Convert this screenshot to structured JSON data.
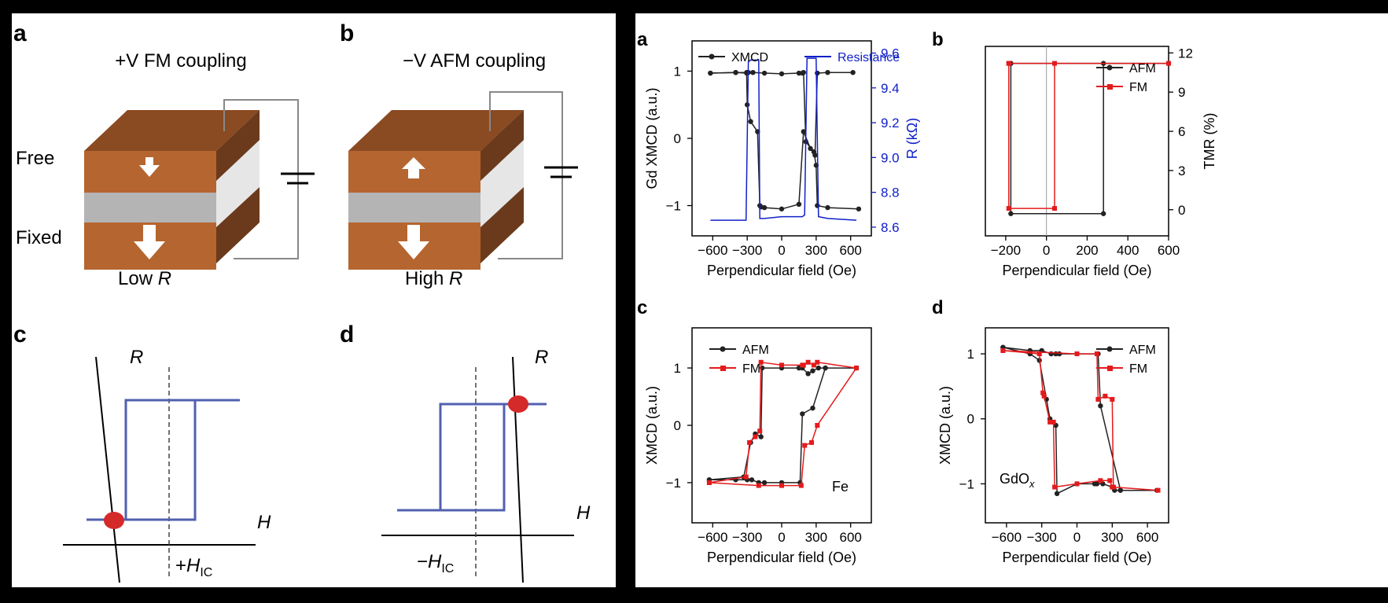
{
  "left": {
    "panels": [
      {
        "letter": "a",
        "title": "+V FM coupling",
        "layer_top": "Free",
        "layer_bottom": "Fixed",
        "caption_prefix": "Low ",
        "caption_var": "R"
      },
      {
        "letter": "b",
        "title": "−V AFM coupling",
        "caption_prefix": "High ",
        "caption_var": "R"
      },
      {
        "letter": "c",
        "ylabel": "R",
        "xlabel": "H",
        "field_sign": "+",
        "field_base": "H",
        "field_sub": "IC"
      },
      {
        "letter": "d",
        "ylabel": "R",
        "xlabel": "H",
        "field_sign": "−",
        "field_base": "H",
        "field_sub": "IC"
      }
    ],
    "colors": {
      "block": "#b5652f",
      "block_top": "#8a4a22",
      "block_side": "#6b3a1c",
      "spacer": "#b4b4b4",
      "loop": "#5060b0",
      "dot": "#d42a2a"
    }
  },
  "chart_data": [
    {
      "id": "a",
      "type": "line",
      "letter": "a",
      "xlabel": "Perpendicular field (Oe)",
      "ylabel": "Gd XMCD (a.u.)",
      "y2label": "R (kΩ)",
      "xlim": [
        -780,
        780
      ],
      "ylim": [
        -1.45,
        1.45
      ],
      "y2lim": [
        8.55,
        9.67
      ],
      "xticks": [
        -600,
        -300,
        0,
        300,
        600
      ],
      "yticks": [
        -1,
        0,
        1
      ],
      "y2ticks": [
        8.6,
        8.8,
        9.0,
        9.2,
        9.4,
        9.6
      ],
      "legend": "top",
      "series": [
        {
          "name": "XMCD",
          "color": "#222222",
          "marker": "circle",
          "branches": [
            {
              "x": [
                -620,
                -400,
                -305,
                -300,
                -270,
                -210,
                -190,
                -180,
                -150,
                0,
                150,
                190,
                250,
                290,
                310,
                400,
                620
              ],
              "y": [
                0.97,
                0.98,
                0.98,
                0.5,
                0.25,
                0.1,
                -1.0,
                -1.02,
                -1.03,
                -1.05,
                -0.98,
                0.1,
                -0.15,
                -0.25,
                0.97,
                0.98,
                0.98
              ]
            },
            {
              "x": [
                670,
                400,
                310,
                300,
                280,
                210,
                190,
                180,
                150,
                0,
                -150,
                -250,
                -290,
                -300,
                -305,
                -400,
                -620
              ],
              "y": [
                -1.05,
                -1.03,
                -1.0,
                -0.4,
                -0.2,
                -0.05,
                0.98,
                0.97,
                0.97,
                0.96,
                0.97,
                0.98,
                0.98,
                0.98,
                0.97,
                0.98,
                0.97
              ]
            }
          ]
        },
        {
          "name": "Resistance",
          "color": "#1020c8",
          "axis": "y2",
          "x": [
            -620,
            -310,
            -290,
            -270,
            -200,
            -190,
            -150,
            0,
            180,
            200,
            220,
            300,
            320,
            400,
            650
          ],
          "y": [
            8.64,
            8.64,
            9.55,
            9.56,
            9.56,
            8.65,
            8.65,
            8.66,
            8.66,
            8.67,
            9.57,
            9.57,
            8.66,
            8.65,
            8.64
          ]
        }
      ]
    },
    {
      "id": "b",
      "type": "line",
      "letter": "b",
      "xlabel": "Perpendicular field (Oe)",
      "y2label": "TMR (%)",
      "xlim": [
        -300,
        600
      ],
      "ylim": [
        -2,
        12.5
      ],
      "xticks": [
        -200,
        0,
        200,
        400,
        600
      ],
      "y2ticks": [
        0,
        3,
        6,
        9,
        12
      ],
      "vline": 0,
      "legend": "top-right",
      "series": [
        {
          "name": "AFM",
          "color": "#222222",
          "marker": "circle",
          "x": [
            -175,
            -175,
            280,
            280,
            600,
            -175
          ],
          "y": [
            11.2,
            -0.3,
            -0.3,
            11.2,
            11.2,
            11.2
          ]
        },
        {
          "name": "FM",
          "color": "#e41a1c",
          "marker": "square",
          "x": [
            -185,
            -185,
            40,
            40,
            600,
            -185
          ],
          "y": [
            11.2,
            0.1,
            0.1,
            11.2,
            11.2,
            11.2
          ]
        }
      ]
    },
    {
      "id": "c",
      "type": "line",
      "letter": "c",
      "xlabel": "Perpendicular field (Oe)",
      "ylabel": "XMCD (a.u.)",
      "annotation": "Fe",
      "xlim": [
        -780,
        780
      ],
      "ylim": [
        -1.7,
        1.7
      ],
      "xticks": [
        -600,
        -300,
        0,
        300,
        600
      ],
      "yticks": [
        -1,
        0,
        1
      ],
      "legend": "top-left",
      "series": [
        {
          "name": "AFM",
          "color": "#222222",
          "marker": "circle",
          "x": [
            -630,
            -330,
            -270,
            -230,
            -180,
            -170,
            0,
            150,
            180,
            230,
            270,
            320,
            380,
            650,
            380,
            270,
            180,
            160,
            0,
            -150,
            -200,
            -260,
            -300,
            -400,
            -630
          ],
          "y": [
            -0.95,
            -0.9,
            -0.3,
            -0.15,
            -0.2,
            1.0,
            1.0,
            1.0,
            1.0,
            0.9,
            0.95,
            1.0,
            1.0,
            1.0,
            1.0,
            0.3,
            0.2,
            -1.0,
            -1.0,
            -1.0,
            -1.0,
            -0.95,
            -0.95,
            -0.95,
            -0.95
          ]
        },
        {
          "name": "FM",
          "color": "#e41a1c",
          "marker": "square",
          "x": [
            -630,
            -310,
            -280,
            -230,
            -190,
            -180,
            0,
            180,
            190,
            230,
            280,
            310,
            650,
            310,
            260,
            200,
            170,
            0,
            -200,
            -630
          ],
          "y": [
            -1.0,
            -0.9,
            -0.3,
            -0.2,
            -0.1,
            1.1,
            1.05,
            1.05,
            1.05,
            1.1,
            1.05,
            1.1,
            1.0,
            0.0,
            -0.3,
            -0.35,
            -1.05,
            -1.05,
            -1.05,
            -1.0
          ]
        }
      ]
    },
    {
      "id": "d",
      "type": "line",
      "letter": "d",
      "xlabel": "Perpendicular field (Oe)",
      "ylabel": "XMCD (a.u.)",
      "annotation_base": "GdO",
      "annotation_sub": "x",
      "xlim": [
        -780,
        780
      ],
      "ylim": [
        -1.6,
        1.4
      ],
      "xticks": [
        -600,
        -300,
        0,
        300,
        600
      ],
      "yticks": [
        -1,
        0,
        1
      ],
      "legend": "top-right",
      "series": [
        {
          "name": "AFM",
          "color": "#222222",
          "marker": "circle",
          "x": [
            -630,
            -400,
            -320,
            -260,
            -230,
            -180,
            -170,
            0,
            150,
            170,
            220,
            300,
            320,
            370,
            680,
            370,
            200,
            180,
            -150,
            -180,
            -220,
            -300,
            -400,
            -630
          ],
          "y": [
            1.1,
            1.0,
            0.9,
            0.3,
            0.0,
            -0.1,
            -1.15,
            -1.0,
            -1.0,
            -1.0,
            -1.0,
            -1.05,
            -1.1,
            -1.1,
            -1.1,
            -1.1,
            0.2,
            1.0,
            1.0,
            1.0,
            1.0,
            1.05,
            1.05,
            1.1
          ]
        },
        {
          "name": "FM",
          "color": "#e41a1c",
          "marker": "square",
          "x": [
            -630,
            -320,
            -290,
            -280,
            -230,
            -200,
            -190,
            0,
            200,
            280,
            300,
            310,
            690,
            310,
            300,
            240,
            180,
            170,
            0,
            -630
          ],
          "y": [
            1.05,
            1.0,
            0.4,
            0.35,
            -0.05,
            -0.05,
            -1.05,
            -1.0,
            -0.95,
            -0.95,
            -1.05,
            -1.05,
            -1.1,
            -1.05,
            0.3,
            0.35,
            0.3,
            1.0,
            1.0,
            1.05
          ]
        }
      ]
    }
  ]
}
